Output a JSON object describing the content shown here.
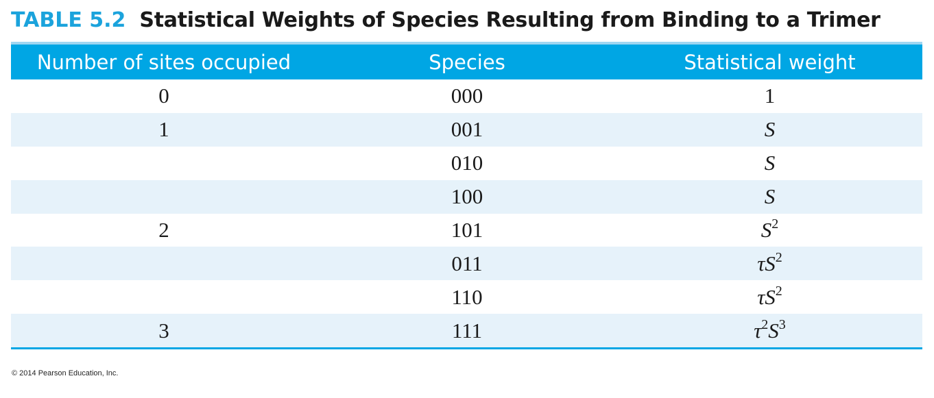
{
  "title": {
    "label": "TABLE 5.2",
    "text": "Statistical Weights of Species Resulting from Binding to a Trimer"
  },
  "table": {
    "headers": [
      "Number of sites occupied",
      "Species",
      "Statistical weight"
    ],
    "rows": [
      {
        "sites": "0",
        "species": "000",
        "weight": [
          {
            "t": "1"
          }
        ]
      },
      {
        "sites": "1",
        "species": "001",
        "weight": [
          {
            "t": "S"
          }
        ]
      },
      {
        "sites": "",
        "species": "010",
        "weight": [
          {
            "t": "S"
          }
        ]
      },
      {
        "sites": "",
        "species": "100",
        "weight": [
          {
            "t": "S"
          }
        ]
      },
      {
        "sites": "2",
        "species": "101",
        "weight": [
          {
            "t": "S",
            "sup": "2"
          }
        ]
      },
      {
        "sites": "",
        "species": "011",
        "weight": [
          {
            "t": "τ"
          },
          {
            "t": "S",
            "sup": "2"
          }
        ]
      },
      {
        "sites": "",
        "species": "110",
        "weight": [
          {
            "t": "τ"
          },
          {
            "t": "S",
            "sup": "2"
          }
        ]
      },
      {
        "sites": "3",
        "species": "111",
        "weight": [
          {
            "t": "τ",
            "sup": "2"
          },
          {
            "t": "S",
            "sup": "3"
          }
        ]
      }
    ]
  },
  "footer": {
    "copyright": "© 2014 Pearson Education, Inc."
  },
  "colors": {
    "accent": "#00a6e4",
    "title_label": "#1ba3dc",
    "row_shade": "#e6f2fa",
    "top_rule": "#9fd6f1"
  }
}
